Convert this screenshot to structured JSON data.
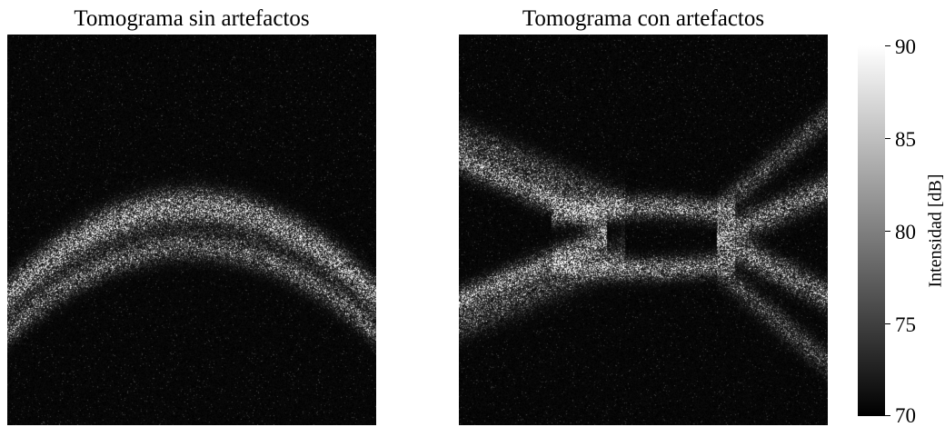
{
  "panels": {
    "left": {
      "title": "Tomograma sin artefactos"
    },
    "right": {
      "title": "Tomograma con artefactos"
    }
  },
  "colorbar": {
    "label": "Intensidad [dB]",
    "min": 70,
    "max": 90,
    "ticks": [
      "90",
      "85",
      "80",
      "75",
      "70"
    ],
    "tick_values": [
      90,
      85,
      80,
      75,
      70
    ],
    "colormap": "gray"
  }
}
